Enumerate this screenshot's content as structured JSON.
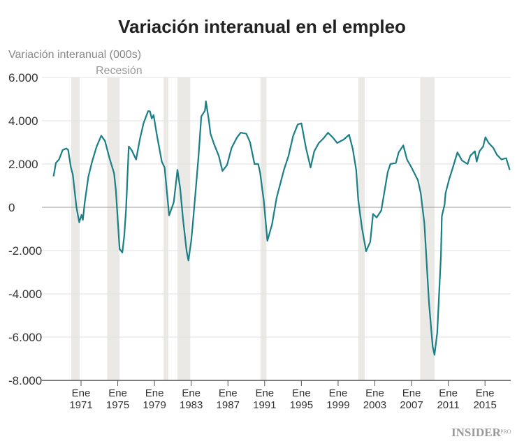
{
  "chart_data": {
    "type": "line",
    "title": "Variación interanual en el empleo",
    "ylabel": "Variación interanual (000s)",
    "xlabel": "",
    "ylim": [
      -8000,
      6000
    ],
    "xlim": [
      1968,
      2017.8
    ],
    "grid": true,
    "yticks": [
      {
        "value": 6000,
        "label": "6.000"
      },
      {
        "value": 4000,
        "label": "4.000"
      },
      {
        "value": 2000,
        "label": "2.000"
      },
      {
        "value": 0,
        "label": "0"
      },
      {
        "value": -2000,
        "label": "-2.000"
      },
      {
        "value": -4000,
        "label": "-4.000"
      },
      {
        "value": -6000,
        "label": "-6.000"
      },
      {
        "value": -8000,
        "label": "-8.000"
      }
    ],
    "xticks": [
      {
        "value": 1971,
        "month": "Ene",
        "year": "1971"
      },
      {
        "value": 1975,
        "month": "Ene",
        "year": "1975"
      },
      {
        "value": 1979,
        "month": "Ene",
        "year": "1979"
      },
      {
        "value": 1983,
        "month": "Ene",
        "year": "1983"
      },
      {
        "value": 1987,
        "month": "Ene",
        "year": "1987"
      },
      {
        "value": 1991,
        "month": "Ene",
        "year": "1991"
      },
      {
        "value": 1995,
        "month": "Ene",
        "year": "1995"
      },
      {
        "value": 1999,
        "month": "Ene",
        "year": "1999"
      },
      {
        "value": 2003,
        "month": "Ene",
        "year": "2003"
      },
      {
        "value": 2007,
        "month": "Ene",
        "year": "2007"
      },
      {
        "value": 2011,
        "month": "Ene",
        "year": "2011"
      },
      {
        "value": 2015,
        "month": "Ene",
        "year": "2015"
      }
    ],
    "recession_label": "Recesión",
    "recessions": [
      [
        1969.93,
        1970.85
      ],
      [
        1973.85,
        1975.2
      ],
      [
        1980.0,
        1980.5
      ],
      [
        1981.5,
        1982.9
      ],
      [
        1990.55,
        1991.2
      ],
      [
        2001.2,
        2001.9
      ],
      [
        2007.95,
        2009.5
      ]
    ],
    "line_color": "#1a7f86",
    "recession_color": "#ebe9e5",
    "series": [
      {
        "x": [
          1968.0,
          1968.26,
          1968.6,
          1969.0,
          1969.4,
          1969.6,
          1969.9,
          1970.1,
          1970.5,
          1970.8,
          1971.05,
          1971.2,
          1971.4,
          1971.8,
          1972.2,
          1972.7,
          1973.2,
          1973.6,
          1974.1,
          1974.6,
          1974.8,
          1975.2,
          1975.5,
          1975.7,
          1975.9,
          1976.2,
          1976.5,
          1977.0,
          1977.4,
          1977.8,
          1978.3,
          1978.5,
          1978.7,
          1978.9,
          1979.3,
          1979.8,
          1980.1,
          1980.6,
          1981.1,
          1981.5,
          1981.8,
          1982.1,
          1982.5,
          1982.7,
          1983.0,
          1983.2,
          1983.5,
          1983.8,
          1984.1,
          1984.5,
          1984.6,
          1984.9,
          1985.1,
          1985.5,
          1986.0,
          1986.4,
          1986.9,
          1987.4,
          1988.0,
          1988.4,
          1989.0,
          1989.4,
          1989.9,
          1990.3,
          1990.5,
          1990.9,
          1991.3,
          1991.8,
          1992.3,
          1993.1,
          1993.6,
          1994.1,
          1994.6,
          1995.0,
          1995.5,
          1996.0,
          1996.4,
          1996.9,
          1997.4,
          1997.9,
          1998.4,
          1998.9,
          1999.6,
          2000.2,
          2000.6,
          2000.97,
          2001.2,
          2001.6,
          2002.05,
          2002.5,
          2002.8,
          2003.2,
          2003.7,
          2004.4,
          2004.7,
          2005.3,
          2005.6,
          2006.1,
          2006.5,
          2007.0,
          2007.7,
          2008.0,
          2008.4,
          2008.9,
          2009.3,
          2009.5,
          2009.8,
          2010.2,
          2010.3,
          2010.6,
          2010.7,
          2011.1,
          2011.5,
          2012.0,
          2012.5,
          2013.1,
          2013.4,
          2013.9,
          2014.1,
          2014.4,
          2014.8,
          2015.05,
          2015.4,
          2015.9,
          2016.3,
          2016.8,
          2017.3,
          2017.7
        ],
        "y": [
          1430,
          2050,
          2210,
          2650,
          2720,
          2650,
          1840,
          1520,
          10,
          -690,
          -350,
          -580,
          230,
          1420,
          2110,
          2810,
          3310,
          3070,
          2270,
          1570,
          760,
          -1930,
          -2090,
          -1330,
          -100,
          2810,
          2650,
          2210,
          3130,
          3880,
          4440,
          4440,
          4100,
          4260,
          3240,
          2110,
          1840,
          -370,
          230,
          1730,
          870,
          -530,
          -2030,
          -2460,
          -1550,
          -640,
          870,
          2380,
          4200,
          4470,
          4900,
          4100,
          3400,
          2910,
          2380,
          1680,
          1950,
          2750,
          3240,
          3450,
          3400,
          3020,
          2000,
          2000,
          1620,
          330,
          -1550,
          -800,
          440,
          1730,
          2380,
          3290,
          3830,
          3880,
          2750,
          1840,
          2590,
          2970,
          3180,
          3450,
          3240,
          2970,
          3130,
          3350,
          2700,
          1730,
          330,
          -960,
          -2030,
          -1600,
          -310,
          -470,
          -150,
          1620,
          2000,
          2050,
          2540,
          2860,
          2210,
          1840,
          1250,
          650,
          -740,
          -4400,
          -6440,
          -6820,
          -5800,
          -2250,
          -420,
          120,
          650,
          1300,
          1840,
          2540,
          2160,
          2000,
          2380,
          2590,
          2110,
          2590,
          2810,
          3240,
          2970,
          2750,
          2430,
          2210,
          2270,
          1730
        ]
      }
    ]
  },
  "footer": {
    "logo": "INSIDER",
    "logo_suffix": "PRO"
  }
}
